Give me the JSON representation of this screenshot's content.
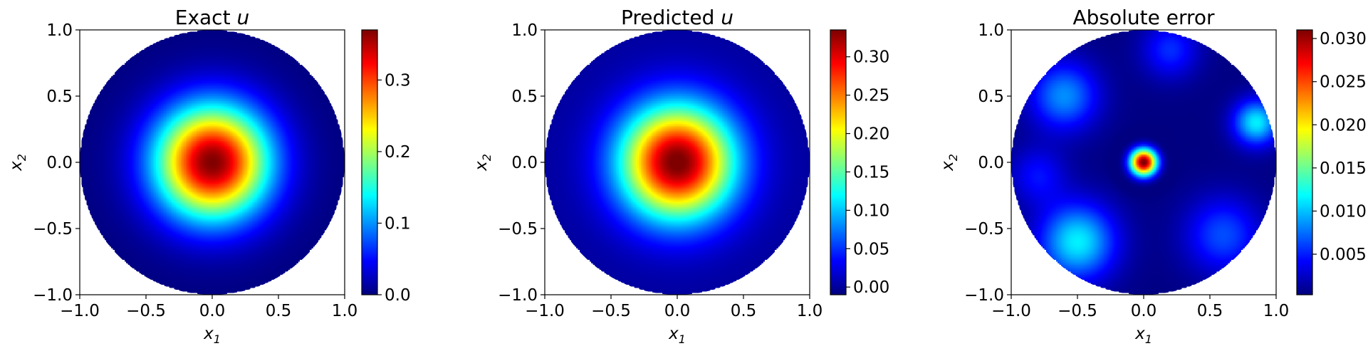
{
  "chart_data": [
    {
      "type": "heatmap",
      "title": "Exact u",
      "title_parts": {
        "text": "Exact ",
        "var": "u"
      },
      "xlabel": "x1",
      "ylabel": "x2",
      "xlim": [
        -1.0,
        1.0
      ],
      "ylim": [
        -1.0,
        1.0
      ],
      "x_ticks": [
        "−1.0",
        "−0.5",
        "0.0",
        "0.5",
        "1.0"
      ],
      "y_ticks": [
        "−1.0",
        "−0.5",
        "0.0",
        "0.5",
        "1.0"
      ],
      "domain": "unit disk",
      "colormap": "jet",
      "field": {
        "kind": "gaussian",
        "peak": 0.37,
        "sigma": 0.3
      },
      "colorbar": {
        "min": 0.0,
        "max": 0.37,
        "ticks": [
          0.0,
          0.1,
          0.2,
          0.3
        ],
        "tick_labels": [
          "0.0",
          "0.1",
          "0.2",
          "0.3"
        ]
      }
    },
    {
      "type": "heatmap",
      "title": "Predicted u",
      "title_parts": {
        "text": "Predicted ",
        "var": "u"
      },
      "xlabel": "x1",
      "ylabel": "x2",
      "xlim": [
        -1.0,
        1.0
      ],
      "ylim": [
        -1.0,
        1.0
      ],
      "x_ticks": [
        "−1.0",
        "−0.5",
        "0.0",
        "0.5",
        "1.0"
      ],
      "y_ticks": [
        "−1.0",
        "−0.5",
        "0.0",
        "0.5",
        "1.0"
      ],
      "domain": "unit disk",
      "colormap": "jet",
      "field": {
        "kind": "gaussian",
        "peak": 0.34,
        "sigma": 0.3
      },
      "colorbar": {
        "min": -0.01,
        "max": 0.335,
        "ticks": [
          0.0,
          0.05,
          0.1,
          0.15,
          0.2,
          0.25,
          0.3
        ],
        "tick_labels": [
          "0.00",
          "0.05",
          "0.10",
          "0.15",
          "0.20",
          "0.25",
          "0.30"
        ]
      }
    },
    {
      "type": "heatmap",
      "title": "Absolute error",
      "title_parts": {
        "text": "Absolute error",
        "var": ""
      },
      "xlabel": "x1",
      "ylabel": "x2",
      "xlim": [
        -1.0,
        1.0
      ],
      "ylim": [
        -1.0,
        1.0
      ],
      "x_ticks": [
        "−1.0",
        "−0.5",
        "0.0",
        "0.5",
        "1.0"
      ],
      "y_ticks": [
        "−1.0",
        "−0.5",
        "0.0",
        "0.5",
        "1.0"
      ],
      "domain": "unit disk",
      "colormap": "jet",
      "field": {
        "kind": "error",
        "peak": 0.031,
        "sigma": 0.07,
        "bumps": [
          {
            "x": -0.6,
            "y": 0.5,
            "a": 0.008,
            "s": 0.18
          },
          {
            "x": -0.5,
            "y": -0.6,
            "a": 0.011,
            "s": 0.2
          },
          {
            "x": 0.6,
            "y": -0.55,
            "a": 0.006,
            "s": 0.2
          },
          {
            "x": 0.85,
            "y": 0.3,
            "a": 0.011,
            "s": 0.12
          },
          {
            "x": 0.2,
            "y": 0.85,
            "a": 0.005,
            "s": 0.15
          },
          {
            "x": -0.8,
            "y": -0.1,
            "a": 0.004,
            "s": 0.15
          }
        ]
      },
      "colorbar": {
        "min": 0.0003,
        "max": 0.031,
        "ticks": [
          0.005,
          0.01,
          0.015,
          0.02,
          0.025,
          0.03
        ],
        "tick_labels": [
          "0.005",
          "0.010",
          "0.015",
          "0.020",
          "0.025",
          "0.030"
        ]
      }
    }
  ]
}
